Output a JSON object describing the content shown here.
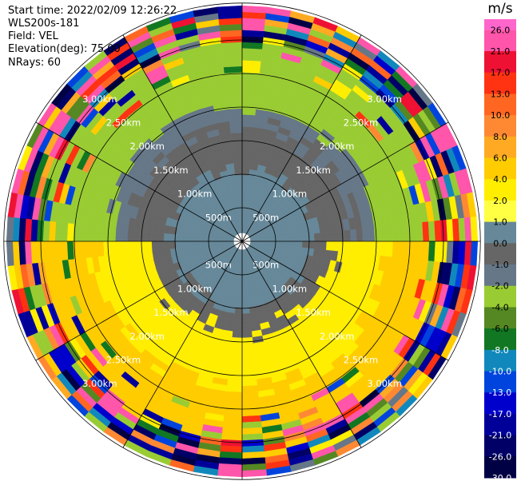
{
  "header": {
    "start_time": "Start time: 2022/02/09 12:26:22",
    "instrument": "WLS200s-181",
    "field": "Field: VEL",
    "elevation": "Elevation(deg): 75.00",
    "nrays": "NRays: 60"
  },
  "colorbar": {
    "unit": "m/s",
    "labels": [
      "26.0",
      "21.0",
      "17.0",
      "13.0",
      "10.0",
      "8.0",
      "6.0",
      "4.0",
      "2.0",
      "1.0",
      "0.0",
      "-1.0",
      "-2.0",
      "-4.0",
      "-6.0",
      "-8.0",
      "-10.0",
      "-13.0",
      "-17.0",
      "-21.0",
      "-26.0",
      "-30.0"
    ],
    "colors": [
      "#ff55aa",
      "#ee1133",
      "#ff3311",
      "#ff6622",
      "#ff8833",
      "#ffaa22",
      "#ffcc00",
      "#ffee00",
      "#ffff44",
      "#668899",
      "#666666",
      "#667788",
      "#99cc33",
      "#558822",
      "#117722",
      "#1188bb",
      "#0044dd",
      "#0000cc",
      "#000099",
      "#000066",
      "#000044"
    ],
    "extend_top_color": "#ff66cc"
  },
  "chart_data": {
    "type": "polar_ppi",
    "field": "VEL",
    "units": "m/s",
    "n_rays": 60,
    "elevation_deg": 75.0,
    "range_rings_km": [
      0.5,
      1.0,
      1.5,
      2.0,
      2.5,
      3.0
    ],
    "range_ring_labels": [
      "500m",
      "1.00km",
      "1.50km",
      "2.00km",
      "2.50km",
      "3.00km"
    ],
    "max_range_km": 3.55,
    "color_scale": [
      -30,
      -26,
      -21,
      -17,
      -13,
      -10,
      -8,
      -6,
      -4,
      -2,
      -1,
      0,
      1,
      2,
      4,
      6,
      8,
      10,
      13,
      17,
      21,
      26
    ],
    "pattern_description_values_ms": {
      "near_north": [
        0.0,
        0.5,
        1.5,
        3.0
      ],
      "near_south": [
        0.0,
        0.5,
        2.5,
        5.0
      ]
    }
  }
}
